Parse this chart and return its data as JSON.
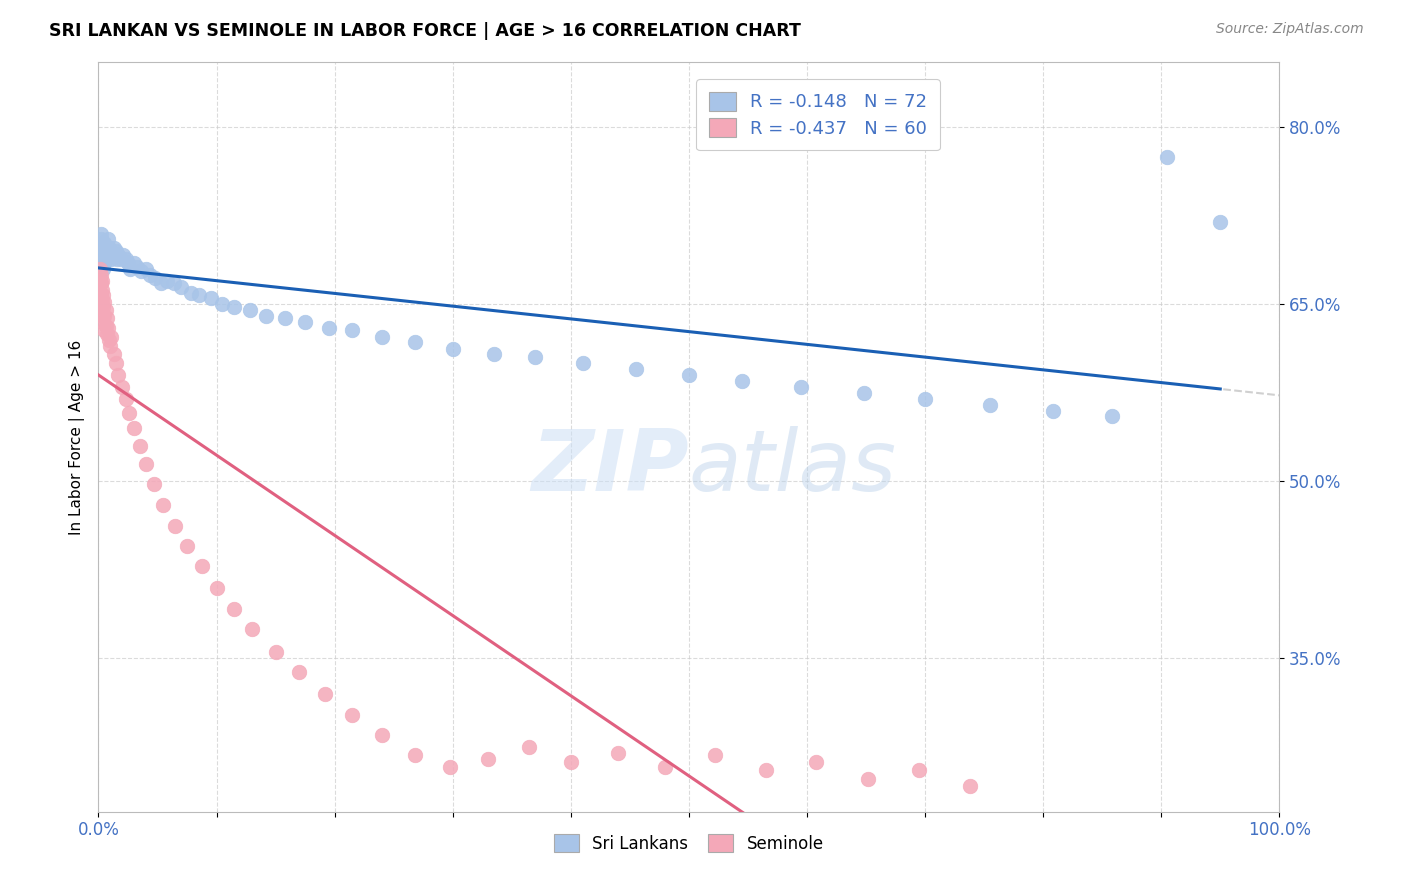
{
  "title": "SRI LANKAN VS SEMINOLE IN LABOR FORCE | AGE > 16 CORRELATION CHART",
  "source": "Source: ZipAtlas.com",
  "ylabel": "In Labor Force | Age > 16",
  "xlim": [
    0.0,
    1.0
  ],
  "ylim": [
    0.22,
    0.855
  ],
  "yticks": [
    0.35,
    0.5,
    0.65,
    0.8
  ],
  "ytick_labels": [
    "35.0%",
    "50.0%",
    "65.0%",
    "80.0%"
  ],
  "xticks": [
    0.0,
    0.1,
    0.2,
    0.3,
    0.4,
    0.5,
    0.6,
    0.7,
    0.8,
    0.9,
    1.0
  ],
  "blue_color": "#a8c4e8",
  "pink_color": "#f4a8b8",
  "blue_line_color": "#1a5fb4",
  "pink_line_color": "#e06080",
  "trend_extend_color": "#d0d0d0",
  "legend_label_1": "R = -0.148   N = 72",
  "legend_label_2": "R = -0.437   N = 60",
  "legend_label_sri": "Sri Lankans",
  "legend_label_sem": "Seminole",
  "blue_r": -0.148,
  "blue_n": 72,
  "pink_r": -0.437,
  "pink_n": 60,
  "sri_lankans_x": [
    0.001,
    0.001,
    0.002,
    0.002,
    0.002,
    0.003,
    0.003,
    0.003,
    0.003,
    0.004,
    0.004,
    0.004,
    0.005,
    0.005,
    0.005,
    0.006,
    0.006,
    0.007,
    0.007,
    0.008,
    0.008,
    0.009,
    0.01,
    0.011,
    0.012,
    0.013,
    0.015,
    0.016,
    0.017,
    0.019,
    0.021,
    0.023,
    0.025,
    0.027,
    0.03,
    0.033,
    0.036,
    0.04,
    0.044,
    0.048,
    0.053,
    0.058,
    0.064,
    0.07,
    0.078,
    0.085,
    0.095,
    0.105,
    0.115,
    0.128,
    0.142,
    0.158,
    0.175,
    0.195,
    0.215,
    0.24,
    0.268,
    0.3,
    0.335,
    0.37,
    0.41,
    0.455,
    0.5,
    0.545,
    0.595,
    0.648,
    0.7,
    0.755,
    0.808,
    0.858,
    0.905,
    0.95
  ],
  "sri_lankans_y": [
    0.69,
    0.7,
    0.695,
    0.705,
    0.71,
    0.688,
    0.695,
    0.7,
    0.692,
    0.68,
    0.688,
    0.698,
    0.685,
    0.695,
    0.702,
    0.69,
    0.698,
    0.688,
    0.695,
    0.705,
    0.692,
    0.698,
    0.695,
    0.688,
    0.692,
    0.698,
    0.695,
    0.688,
    0.692,
    0.688,
    0.692,
    0.688,
    0.685,
    0.68,
    0.685,
    0.682,
    0.678,
    0.68,
    0.675,
    0.672,
    0.668,
    0.67,
    0.668,
    0.665,
    0.66,
    0.658,
    0.655,
    0.65,
    0.648,
    0.645,
    0.64,
    0.638,
    0.635,
    0.63,
    0.628,
    0.622,
    0.618,
    0.612,
    0.608,
    0.605,
    0.6,
    0.595,
    0.59,
    0.585,
    0.58,
    0.575,
    0.57,
    0.565,
    0.56,
    0.555,
    0.775,
    0.72
  ],
  "seminole_x": [
    0.001,
    0.001,
    0.001,
    0.002,
    0.002,
    0.002,
    0.002,
    0.003,
    0.003,
    0.003,
    0.003,
    0.004,
    0.004,
    0.004,
    0.005,
    0.005,
    0.005,
    0.006,
    0.006,
    0.007,
    0.007,
    0.008,
    0.009,
    0.01,
    0.011,
    0.013,
    0.015,
    0.017,
    0.02,
    0.023,
    0.026,
    0.03,
    0.035,
    0.04,
    0.047,
    0.055,
    0.065,
    0.075,
    0.088,
    0.1,
    0.115,
    0.13,
    0.15,
    0.17,
    0.192,
    0.215,
    0.24,
    0.268,
    0.298,
    0.33,
    0.365,
    0.4,
    0.44,
    0.48,
    0.522,
    0.565,
    0.608,
    0.652,
    0.695,
    0.738
  ],
  "seminole_y": [
    0.68,
    0.67,
    0.66,
    0.675,
    0.668,
    0.658,
    0.648,
    0.67,
    0.662,
    0.652,
    0.64,
    0.658,
    0.648,
    0.635,
    0.652,
    0.64,
    0.628,
    0.645,
    0.632,
    0.638,
    0.625,
    0.63,
    0.62,
    0.615,
    0.622,
    0.608,
    0.6,
    0.59,
    0.58,
    0.57,
    0.558,
    0.545,
    0.53,
    0.515,
    0.498,
    0.48,
    0.462,
    0.445,
    0.428,
    0.41,
    0.392,
    0.375,
    0.355,
    0.338,
    0.32,
    0.302,
    0.285,
    0.268,
    0.258,
    0.265,
    0.275,
    0.262,
    0.27,
    0.258,
    0.268,
    0.255,
    0.262,
    0.248,
    0.255,
    0.242
  ]
}
